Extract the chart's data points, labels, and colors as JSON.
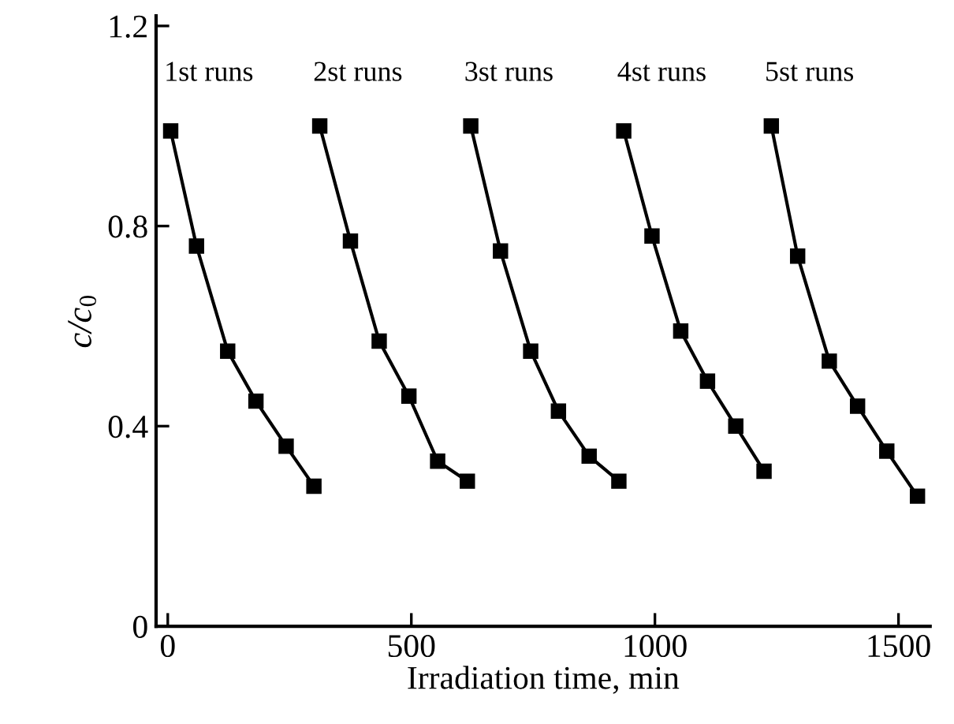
{
  "chart_data": {
    "type": "line",
    "xlabel": "Irradiation time, min",
    "ylabel": "c/c$_{0}$",
    "xlim": [
      -24,
      1565
    ],
    "ylim": [
      0,
      1.22
    ],
    "xticks": [
      0,
      500,
      1000,
      1500
    ],
    "yticks": [
      0,
      0.4,
      0.8,
      1.2
    ],
    "marker": "square",
    "line_style": "solid",
    "grid": false,
    "legend": false,
    "series": [
      {
        "name": "1st runs",
        "color": "#000000",
        "x": [
          6,
          59,
          123,
          181,
          243,
          300
        ],
        "values": [
          0.99,
          0.76,
          0.55,
          0.45,
          0.36,
          0.28
        ]
      },
      {
        "name": "2st runs",
        "color": "#000000",
        "x": [
          312,
          375,
          434,
          495,
          554,
          615
        ],
        "values": [
          1.0,
          0.77,
          0.57,
          0.46,
          0.33,
          0.29
        ]
      },
      {
        "name": "3st runs",
        "color": "#000000",
        "x": [
          622,
          683,
          745,
          802,
          865,
          926
        ],
        "values": [
          1.0,
          0.75,
          0.55,
          0.43,
          0.34,
          0.29
        ]
      },
      {
        "name": "4st runs",
        "color": "#000000",
        "x": [
          936,
          994,
          1053,
          1108,
          1166,
          1224
        ],
        "values": [
          0.99,
          0.78,
          0.59,
          0.49,
          0.4,
          0.31
        ]
      },
      {
        "name": "5st runs",
        "color": "#000000",
        "x": [
          1239,
          1293,
          1358,
          1416,
          1476,
          1539
        ],
        "values": [
          1.0,
          0.74,
          0.53,
          0.44,
          0.35,
          0.26
        ]
      }
    ]
  }
}
